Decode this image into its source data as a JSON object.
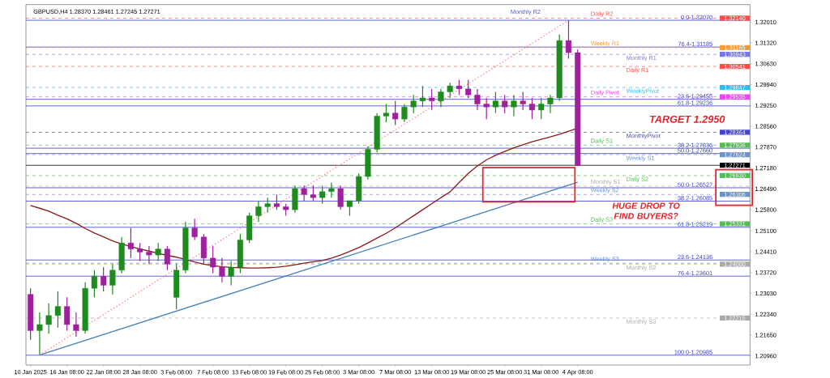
{
  "chart_data": {
    "type": "candlestick",
    "title": "GBPUSD,H4  1.28370 1.28461 1.27245 1.27271",
    "categories": [
      "10 Jan 2025",
      null,
      null,
      null,
      "16 Jan 08:00",
      null,
      null,
      null,
      "22 Jan 08:00",
      null,
      null,
      null,
      "28 Jan 08:00",
      null,
      null,
      null,
      "3 Feb 08:00",
      null,
      null,
      null,
      "7 Feb 08:00",
      null,
      null,
      null,
      "13 Feb 08:00",
      null,
      null,
      null,
      "19 Feb 08:00",
      null,
      null,
      null,
      "25 Feb 08:00",
      null,
      null,
      null,
      "3 Mar 08:00",
      null,
      null,
      null,
      "7 Mar 08:00",
      null,
      null,
      null,
      "13 Mar 08:00",
      null,
      null,
      null,
      "19 Mar 08:00",
      null,
      null,
      null,
      "25 Mar 08:00",
      null,
      null,
      null,
      "31 Mar 08:00",
      null,
      null,
      null,
      "4 Apr 08:00"
    ],
    "ohlc": [
      [
        1.23,
        1.232,
        1.215,
        1.218
      ],
      [
        1.218,
        1.224,
        1.21,
        1.22
      ],
      [
        1.22,
        1.227,
        1.217,
        1.223
      ],
      [
        1.223,
        1.231,
        1.219,
        1.226
      ],
      [
        1.226,
        1.229,
        1.218,
        1.22
      ],
      [
        1.22,
        1.224,
        1.216,
        1.218
      ],
      [
        1.218,
        1.234,
        1.217,
        1.232
      ],
      [
        1.232,
        1.238,
        1.229,
        1.236
      ],
      [
        1.236,
        1.239,
        1.231,
        1.233
      ],
      [
        1.233,
        1.24,
        1.23,
        1.238
      ],
      [
        1.238,
        1.249,
        1.237,
        1.247
      ],
      [
        1.247,
        1.252,
        1.242,
        1.245
      ],
      [
        1.245,
        1.247,
        1.241,
        1.244
      ],
      [
        1.244,
        1.246,
        1.24,
        1.243
      ],
      [
        1.243,
        1.247,
        1.241,
        1.245
      ],
      [
        1.245,
        1.246,
        1.238,
        1.24
      ],
      [
        1.229,
        1.24,
        1.225,
        1.238
      ],
      [
        1.238,
        1.254,
        1.237,
        1.252
      ],
      [
        1.252,
        1.255,
        1.248,
        1.249
      ],
      [
        1.249,
        1.25,
        1.24,
        1.242
      ],
      [
        1.242,
        1.246,
        1.237,
        1.239
      ],
      [
        1.239,
        1.242,
        1.234,
        1.236
      ],
      [
        1.236,
        1.241,
        1.233,
        1.239
      ],
      [
        1.239,
        1.25,
        1.237,
        1.248
      ],
      [
        1.248,
        1.257,
        1.247,
        1.256
      ],
      [
        1.256,
        1.261,
        1.254,
        1.259
      ],
      [
        1.259,
        1.262,
        1.257,
        1.26
      ],
      [
        1.26,
        1.263,
        1.258,
        1.259
      ],
      [
        1.259,
        1.26,
        1.256,
        1.258
      ],
      [
        1.258,
        1.266,
        1.257,
        1.265
      ],
      [
        1.265,
        1.266,
        1.261,
        1.263
      ],
      [
        1.263,
        1.266,
        1.261,
        1.262
      ],
      [
        1.262,
        1.266,
        1.26,
        1.264
      ],
      [
        1.264,
        1.267,
        1.262,
        1.265
      ],
      [
        1.265,
        1.266,
        1.258,
        1.259
      ],
      [
        1.259,
        1.261,
        1.256,
        1.261
      ],
      [
        1.261,
        1.27,
        1.26,
        1.269
      ],
      [
        1.269,
        1.279,
        1.268,
        1.278
      ],
      [
        1.278,
        1.29,
        1.277,
        1.289
      ],
      [
        1.289,
        1.293,
        1.287,
        1.29
      ],
      [
        1.29,
        1.294,
        1.286,
        1.288
      ],
      [
        1.288,
        1.293,
        1.287,
        1.292
      ],
      [
        1.292,
        1.296,
        1.29,
        1.294
      ],
      [
        1.294,
        1.299,
        1.292,
        1.295
      ],
      [
        1.295,
        1.298,
        1.291,
        1.294
      ],
      [
        1.294,
        1.298,
        1.292,
        1.297
      ],
      [
        1.297,
        1.3,
        1.295,
        1.299
      ],
      [
        1.299,
        1.301,
        1.296,
        1.298
      ],
      [
        1.298,
        1.301,
        1.295,
        1.296
      ],
      [
        1.296,
        1.298,
        1.291,
        1.293
      ],
      [
        1.293,
        1.295,
        1.288,
        1.292
      ],
      [
        1.292,
        1.297,
        1.29,
        1.294
      ],
      [
        1.294,
        1.296,
        1.29,
        1.292
      ],
      [
        1.292,
        1.296,
        1.289,
        1.294
      ],
      [
        1.294,
        1.297,
        1.291,
        1.293
      ],
      [
        1.293,
        1.295,
        1.288,
        1.291
      ],
      [
        1.291,
        1.295,
        1.288,
        1.293
      ],
      [
        1.293,
        1.296,
        1.29,
        1.295
      ],
      [
        1.295,
        1.316,
        1.294,
        1.314
      ],
      [
        1.314,
        1.3207,
        1.308,
        1.31
      ],
      [
        1.31,
        1.311,
        1.27245,
        1.27271
      ]
    ],
    "colors": [
      "#a020a0",
      "#1e8c1e",
      "#1e8c1e",
      "#1e8c1e",
      "#a020a0",
      "#a020a0",
      "#1e8c1e",
      "#1e8c1e",
      "#a020a0",
      "#1e8c1e",
      "#1e8c1e",
      "#a020a0",
      "#a020a0",
      "#a020a0",
      "#1e8c1e",
      "#a020a0",
      "#1e8c1e",
      "#1e8c1e",
      "#a020a0",
      "#a020a0",
      "#a020a0",
      "#a020a0",
      "#1e8c1e",
      "#1e8c1e",
      "#1e8c1e",
      "#1e8c1e",
      "#1e8c1e",
      "#a020a0",
      "#a020a0",
      "#1e8c1e",
      "#a020a0",
      "#a020a0",
      "#1e8c1e",
      "#1e8c1e",
      "#a020a0",
      "#1e8c1e",
      "#1e8c1e",
      "#1e8c1e",
      "#1e8c1e",
      "#1e8c1e",
      "#a020a0",
      "#1e8c1e",
      "#1e8c1e",
      "#1e8c1e",
      "#a020a0",
      "#1e8c1e",
      "#1e8c1e",
      "#a020a0",
      "#a020a0",
      "#a020a0",
      "#a020a0",
      "#1e8c1e",
      "#a020a0",
      "#1e8c1e",
      "#a020a0",
      "#a020a0",
      "#1e8c1e",
      "#1e8c1e",
      "#1e8c1e",
      "#a020a0",
      "#a020a0"
    ],
    "series": [
      {
        "type": "line",
        "color": "#8b1a1a",
        "line_style": "solid",
        "values": [
          1.2594,
          1.2585,
          1.2575,
          1.2562,
          1.255,
          1.2535,
          1.2518,
          1.2503,
          1.249,
          1.2477,
          1.2467,
          1.2458,
          1.245,
          1.2443,
          1.2436,
          1.2429,
          1.2423,
          1.2415,
          1.2407,
          1.24,
          1.2395,
          1.2391,
          1.2389,
          1.2388,
          1.2387,
          1.2387,
          1.2388,
          1.239,
          1.2393,
          1.2398,
          1.2403,
          1.2408,
          1.2412,
          1.242,
          1.243,
          1.2442,
          1.2455,
          1.247,
          1.2486,
          1.2502,
          1.252,
          1.254,
          1.256,
          1.258,
          1.26,
          1.262,
          1.2639,
          1.267,
          1.27,
          1.2725,
          1.2745,
          1.276,
          1.2773,
          1.2785,
          1.2795,
          1.2805,
          1.2813,
          1.2821,
          1.283,
          1.284,
          1.285
        ]
      },
      {
        "type": "line",
        "color": "#4682b4",
        "line_style": "solid",
        "values": [
          null,
          1.2099,
          null,
          null,
          null,
          null,
          null,
          null,
          null,
          null,
          null,
          null,
          null,
          null,
          null,
          null,
          null,
          null,
          null,
          null,
          null,
          null,
          null,
          null,
          null,
          null,
          null,
          null,
          null,
          null,
          null,
          null,
          null,
          null,
          null,
          null,
          null,
          null,
          null,
          null,
          null,
          null,
          null,
          null,
          null,
          null,
          null,
          null,
          null,
          null,
          null,
          null,
          null,
          null,
          null,
          null,
          null,
          null,
          null,
          null,
          1.2671
        ]
      },
      {
        "type": "line",
        "color": "#ff8080",
        "line_style": "dotted",
        "values": [
          null,
          1.2099,
          null,
          null,
          null,
          null,
          null,
          null,
          null,
          null,
          null,
          null,
          null,
          null,
          null,
          null,
          null,
          null,
          null,
          null,
          null,
          null,
          null,
          null,
          null,
          null,
          null,
          null,
          null,
          null,
          null,
          null,
          null,
          null,
          null,
          null,
          null,
          null,
          null,
          null,
          null,
          null,
          null,
          null,
          null,
          null,
          null,
          null,
          null,
          null,
          null,
          null,
          null,
          null,
          null,
          null,
          null,
          null,
          null,
          1.3207,
          null
        ]
      }
    ],
    "ylim": [
      1.2066,
      1.3259
    ],
    "yticks": [
      {
        "value": 1.3201,
        "label": "1.32010"
      },
      {
        "value": 1.3132,
        "label": "1.31320"
      },
      {
        "value": 1.3063,
        "label": "1.30630"
      },
      {
        "value": 1.2994,
        "label": "1.29940"
      },
      {
        "value": 1.2925,
        "label": "1.29250"
      },
      {
        "value": 1.2856,
        "label": "1.28560"
      },
      {
        "value": 1.2787,
        "label": "1.27870"
      },
      {
        "value": 1.2718,
        "label": "1.27180"
      },
      {
        "value": 1.2649,
        "label": "1.26490"
      },
      {
        "value": 1.258,
        "label": "1.25800"
      },
      {
        "value": 1.251,
        "label": "1.25100"
      },
      {
        "value": 1.2441,
        "label": "1.24410"
      },
      {
        "value": 1.2372,
        "label": "1.23720"
      },
      {
        "value": 1.2303,
        "label": "1.23030"
      },
      {
        "value": 1.2234,
        "label": "1.22340"
      },
      {
        "value": 1.2165,
        "label": "1.21650"
      },
      {
        "value": 1.2096,
        "label": "1.20960"
      }
    ],
    "ref_lines": [
      {
        "axis": "y",
        "value": 1.3207,
        "color": "#3a3ad6",
        "line_style": "solid"
      },
      {
        "axis": "y",
        "value": 1.31185,
        "color": "#3a3ad6",
        "line_style": "solid"
      },
      {
        "axis": "y",
        "value": 1.29455,
        "color": "#3a3ad6",
        "line_style": "solid"
      },
      {
        "axis": "y",
        "value": 1.29236,
        "color": "#3a3ad6",
        "line_style": "solid"
      },
      {
        "axis": "y",
        "value": 1.27836,
        "color": "#3a3ad6",
        "line_style": "solid"
      },
      {
        "axis": "y",
        "value": 1.2766,
        "color": "#3a3ad6",
        "line_style": "solid"
      },
      {
        "axis": "y",
        "value": 1.26527,
        "color": "#3a3ad6",
        "line_style": "solid"
      },
      {
        "axis": "y",
        "value": 1.26085,
        "color": "#3a3ad6",
        "line_style": "solid"
      },
      {
        "axis": "y",
        "value": 1.25219,
        "color": "#3a3ad6",
        "line_style": "solid"
      },
      {
        "axis": "y",
        "value": 1.24136,
        "color": "#3a3ad6",
        "line_style": "solid"
      },
      {
        "axis": "y",
        "value": 1.23601,
        "color": "#3a3ad6",
        "line_style": "solid"
      },
      {
        "axis": "y",
        "value": 1.20985,
        "color": "#3a3ad6",
        "line_style": "solid"
      },
      {
        "axis": "y",
        "value": 1.3214,
        "label": "1.32140",
        "color": "#ff4d4d",
        "line_style": "dashed"
      },
      {
        "axis": "y",
        "value": 1.31165,
        "label": "1.31165",
        "color": "#ff9933",
        "line_style": "dashed"
      },
      {
        "axis": "y",
        "value": 1.30943,
        "label": "1.30943",
        "color": "#7777e6",
        "line_style": "dashed"
      },
      {
        "axis": "y",
        "value": 1.30541,
        "label": "1.30541",
        "color": "#ff4d4d",
        "line_style": "dashed"
      },
      {
        "axis": "y",
        "value": 1.29847,
        "label": "1.29847",
        "color": "#33bbee",
        "line_style": "dashed"
      },
      {
        "axis": "y",
        "value": 1.29535,
        "label": "1.29535",
        "color": "#ee44ee",
        "line_style": "dashed"
      },
      {
        "axis": "y",
        "value": 1.28364,
        "label": "1.28364",
        "color": "#4444cc",
        "line_style": "dashed"
      },
      {
        "axis": "y",
        "value": 1.27936,
        "label": "1.27936",
        "color": "#55bb55",
        "line_style": "dashed"
      },
      {
        "axis": "y",
        "value": 1.27624,
        "label": "1.27624",
        "color": "#6a93c6",
        "line_style": "dashed"
      },
      {
        "axis": "y",
        "value": 1.2693,
        "label": "1.26930",
        "color": "#55bb55",
        "line_style": "dashed"
      },
      {
        "axis": "y",
        "value": 1.2658,
        "color": "#aaaaaa",
        "line_style": "dashed"
      },
      {
        "axis": "y",
        "value": 1.26306,
        "label": "1.26306",
        "color": "#6a93c6",
        "line_style": "dashed"
      },
      {
        "axis": "y",
        "value": 1.25331,
        "label": "1.25331",
        "color": "#55bb55",
        "line_style": "dashed"
      },
      {
        "axis": "y",
        "value": 1.2403,
        "color": "#6a93c6",
        "line_style": "dashed"
      },
      {
        "axis": "y",
        "value": 1.24,
        "label": "1.24000",
        "color": "#aaaaaa",
        "line_style": "dashed"
      },
      {
        "axis": "y",
        "value": 1.22215,
        "label": "1.22215",
        "color": "#aaaaaa",
        "line_style": "dashed"
      },
      {
        "axis": "y",
        "value": 1.27271,
        "label": "1.27271",
        "color": "#000000",
        "line_style": "solid"
      }
    ],
    "annotations": [
      "Monthly R2",
      "TARGET 1.2950",
      "HUGE DROP TO FIND BUYERS?",
      {
        "text": "0.0-1.32070",
        "y": 1.3207
      },
      {
        "text": "76.4-1.31185",
        "y": 1.31185
      },
      {
        "text": "23.6-1.29455",
        "y": 1.29455
      },
      {
        "text": "61.8-1.29236",
        "y": 1.29236
      },
      {
        "text": "38.2-1.27836",
        "y": 1.27836
      },
      {
        "text": "50.0-1.27660",
        "y": 1.2766
      },
      {
        "text": "50.0-1.26527",
        "y": 1.26527
      },
      {
        "text": "38.2-1.26085",
        "y": 1.26085
      },
      {
        "text": "61.8-1.25219",
        "y": 1.25219
      },
      {
        "text": "23.6-1.24136",
        "y": 1.24136
      },
      {
        "text": "76.4-1.23601",
        "y": 1.23601
      },
      {
        "text": "100.0-1.20985",
        "y": 1.20985
      },
      {
        "text": "Daily R2",
        "y": 1.3214
      },
      {
        "text": "Weekly R1",
        "y": 1.31165
      },
      {
        "text": "Monthly R1",
        "y": 1.30943
      },
      {
        "text": "Daily R1",
        "y": 1.30541
      },
      {
        "text": "WeeklyPivot",
        "y": 1.29847
      },
      {
        "text": "Daily Pivot",
        "y": 1.29535
      },
      {
        "text": "MonthlyPivot",
        "y": 1.28364
      },
      {
        "text": "Daily S1",
        "y": 1.27936
      },
      {
        "text": "Weekly S1",
        "y": 1.27624
      },
      {
        "text": "Daily S2",
        "y": 1.2693
      },
      {
        "text": "Monthly S1",
        "y": 1.2658
      },
      {
        "text": "Weekly S2",
        "y": 1.26306
      },
      {
        "text": "Daily S3",
        "y": 1.25331
      },
      {
        "text": "Weekly S3",
        "y": 1.2403
      },
      {
        "text": "Monthly S2",
        "y": 1.24
      },
      {
        "text": "Monthly S3",
        "y": 1.22215
      }
    ]
  }
}
